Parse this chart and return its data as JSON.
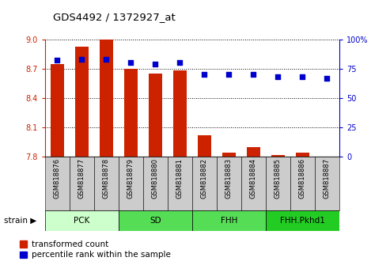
{
  "title": "GDS4492 / 1372927_at",
  "samples": [
    "GSM818876",
    "GSM818877",
    "GSM818878",
    "GSM818879",
    "GSM818880",
    "GSM818881",
    "GSM818882",
    "GSM818883",
    "GSM818884",
    "GSM818885",
    "GSM818886",
    "GSM818887"
  ],
  "red_values": [
    8.75,
    8.92,
    9.0,
    8.7,
    8.65,
    8.68,
    8.02,
    7.84,
    7.9,
    7.82,
    7.84,
    7.8
  ],
  "blue_values": [
    82,
    83,
    83,
    80,
    79,
    80,
    70,
    70,
    70,
    68,
    68,
    67
  ],
  "ylim_left": [
    7.8,
    9.0
  ],
  "yticks_left": [
    7.8,
    8.1,
    8.4,
    8.7,
    9
  ],
  "ylim_right": [
    0,
    100
  ],
  "yticks_right": [
    0,
    25,
    50,
    75,
    100
  ],
  "bar_color": "#cc2200",
  "dot_color": "#0000cc",
  "tick_color_left": "#cc2200",
  "tick_color_right": "#0000cc",
  "groups": [
    {
      "label": "PCK",
      "start": 0,
      "end": 3,
      "color": "#ccffcc"
    },
    {
      "label": "SD",
      "start": 3,
      "end": 6,
      "color": "#55dd55"
    },
    {
      "label": "FHH",
      "start": 6,
      "end": 9,
      "color": "#55dd55"
    },
    {
      "label": "FHH.Pkhd1",
      "start": 9,
      "end": 12,
      "color": "#22cc22"
    }
  ],
  "legend_red": "transformed count",
  "legend_blue": "percentile rank within the sample",
  "bar_bottom": 7.8,
  "xticklabel_area_color": "#cccccc"
}
